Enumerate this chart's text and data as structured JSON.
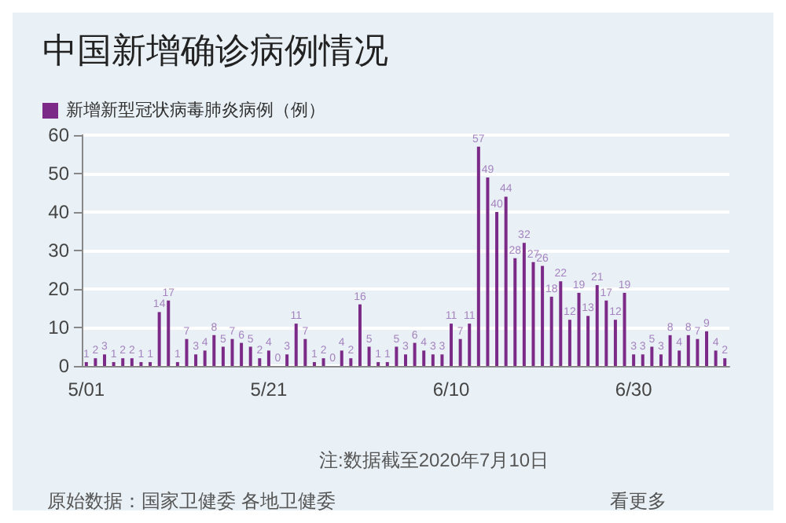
{
  "chart_data": {
    "type": "bar",
    "title": "中国新增确诊病例情况",
    "categories": [
      "5/01",
      null,
      null,
      null,
      null,
      null,
      null,
      null,
      null,
      null,
      null,
      null,
      null,
      null,
      null,
      null,
      null,
      null,
      null,
      null,
      "5/21",
      null,
      null,
      null,
      null,
      null,
      null,
      null,
      null,
      null,
      null,
      null,
      null,
      null,
      null,
      null,
      null,
      null,
      null,
      null,
      "6/10",
      null,
      null,
      null,
      null,
      null,
      null,
      null,
      null,
      null,
      null,
      null,
      null,
      null,
      null,
      null,
      null,
      null,
      null,
      null,
      "6/30",
      null,
      null,
      null,
      null,
      null,
      null,
      null,
      null,
      null,
      null
    ],
    "series": [
      {
        "name": "新增新型冠状病毒肺炎病例（例）",
        "color": "#7b2a87",
        "values": [
          1,
          2,
          3,
          1,
          2,
          2,
          1,
          1,
          14,
          17,
          1,
          7,
          3,
          4,
          8,
          5,
          7,
          6,
          5,
          2,
          4,
          0,
          3,
          11,
          7,
          1,
          2,
          0,
          4,
          2,
          16,
          5,
          1,
          1,
          5,
          3,
          6,
          4,
          3,
          3,
          11,
          7,
          11,
          57,
          49,
          40,
          44,
          28,
          32,
          27,
          26,
          18,
          22,
          12,
          19,
          13,
          21,
          17,
          12,
          19,
          3,
          3,
          5,
          3,
          8,
          4,
          8,
          7,
          9,
          4,
          2
        ]
      }
    ],
    "ylim": [
      0,
      60
    ],
    "yticks": [
      0,
      10,
      20,
      30,
      40,
      50,
      60
    ],
    "grid": "y",
    "legend": "top left",
    "data_labels": true,
    "annotations": [
      "注:数据截至2020年7月10日",
      "原始数据：国家卫健委 各地卫健委",
      "看更多"
    ]
  }
}
